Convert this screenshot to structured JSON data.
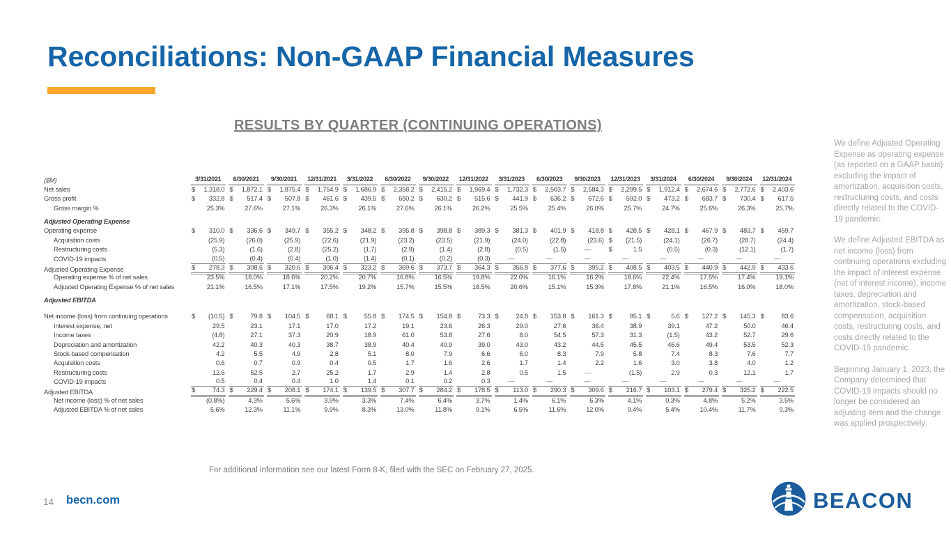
{
  "title": "Reconciliations: Non-GAAP Financial Measures",
  "table_heading": "RESULTS BY QUARTER (CONTINUING OPERATIONS)",
  "footnote": "For additional information see our latest Form 8-K, filed with the SEC on February 27, 2025.",
  "footer": {
    "page_number": "14",
    "site": "becn.com",
    "logo_text": "BEACON"
  },
  "colors": {
    "brand_blue": "#1565a8",
    "logo_blue": "#1b5c9c",
    "accent_orange": "#f9a72b",
    "heading_gray": "#7d7d7d",
    "table_text": "#404040",
    "sidebar_gray": "#a6a6a6"
  },
  "sidebar": {
    "paragraphs": [
      "We define Adjusted Operating Expense as operating expense (as reported on a GAAP basis) excluding the impact of amortization, acquisition costs, restructuring costs, and costs directly related to the COVID-19 pandemic.",
      "We define Adjusted EBITDA as net income (loss) from continuing operations excluding the impact of interest expense (net of interest income), income taxes, depreciation and amortization, stock-based compensation, acquisition costs, restructuring costs, and costs directly related to the COVID-19 pandemic.",
      "Beginning January 1, 2023, the Company determined that COVID-19 impacts should no longer be considered an adjusting item and the change was applied prospectively."
    ]
  },
  "table": {
    "units_label": "($M)",
    "columns": [
      "3/31/2021",
      "6/30/2021",
      "9/30/2021",
      "12/31/2021",
      "3/31/2022",
      "6/30/2022",
      "9/30/2022",
      "12/31/2022",
      "3/31/2023",
      "6/30/2023",
      "9/30/2023",
      "12/31/2023",
      "3/31/2024",
      "6/30/2024",
      "9/30/2024",
      "12/31/2024"
    ],
    "rows": [
      {
        "label": "Net sales",
        "values": [
          "$ 1,318.0",
          "$ 1,872.1",
          "$ 1,875.4",
          "$ 1,754.9",
          "$ 1,686.9",
          "$ 2,358.2",
          "$ 2,415.2",
          "$ 1,969.4",
          "$ 1,732.3",
          "$ 2,503.7",
          "$ 2,584.3",
          "$ 2,299.5",
          "$ 1,912.4",
          "$ 2,674.6",
          "$ 2,772.6",
          "$ 2,403.6"
        ]
      },
      {
        "label": "Gross profit",
        "values": [
          "$ 332.8",
          "$ 517.4",
          "$ 507.8",
          "$ 461.6",
          "$ 439.5",
          "$ 650.2",
          "$ 630.2",
          "$ 515.6",
          "$ 441.9",
          "$ 636.2",
          "$ 672.6",
          "$ 592.0",
          "$ 473.2",
          "$ 683.7",
          "$ 730.4",
          "$ 617.5"
        ]
      },
      {
        "label": "Gross margin %",
        "indent": 1,
        "values": [
          "25.3%",
          "27.6%",
          "27.1%",
          "26.3%",
          "26.1%",
          "27.6%",
          "26.1%",
          "26.2%",
          "25.5%",
          "25.4%",
          "26.0%",
          "25.7%",
          "24.7%",
          "25.6%",
          "26.3%",
          "25.7%"
        ]
      },
      {
        "label": "Adjusted Operating Expense",
        "section": true,
        "space_before": 6
      },
      {
        "label": "Operating expense",
        "values": [
          "$ 310.0",
          "$ 336.6",
          "$ 349.7",
          "$ 355.2",
          "$ 348.2",
          "$ 395.8",
          "$ 398.8",
          "$ 389.3",
          "$ 381.3",
          "$ 401.9",
          "$ 418.8",
          "$ 428.5",
          "$ 428.1",
          "$ 467.9",
          "$ 483.7",
          "$ 459.7"
        ]
      },
      {
        "label": "Acquisition costs",
        "indent": 1,
        "values": [
          "(25.9)",
          "(26.0)",
          "(25.9)",
          "(22.6)",
          "(21.9)",
          "(23.2)",
          "(23.5)",
          "(21.9)",
          "(24.0)",
          "(22.8)",
          "(23.6)",
          "$ (21.5)",
          "(24.1)",
          "(26.7)",
          "(28.7)",
          "(24.4)"
        ]
      },
      {
        "label": "Restructuring costs",
        "indent": 1,
        "values": [
          "(5.3)",
          "(1.6)",
          "(2.8)",
          "(25.2)",
          "(1.7)",
          "(2.9)",
          "(1.4)",
          "(2.8)",
          "(0.5)",
          "(1.5)",
          "—",
          "$ 1.5",
          "(0.5)",
          "(0.3)",
          "(12.1)",
          "(1.7)"
        ]
      },
      {
        "label": "COVID-19 impacts",
        "indent": 1,
        "underline": "single",
        "values": [
          "(0.5)",
          "(0.4)",
          "(0.4)",
          "(1.0)",
          "(1.4)",
          "(0.1)",
          "(0.2)",
          "(0.3)",
          "—",
          "—",
          "—",
          "—",
          "—",
          "—",
          "—",
          "—"
        ]
      },
      {
        "label": "Adjusted Operating Expense",
        "underline": "double",
        "values": [
          "$ 278.3",
          "$ 308.6",
          "$ 320.6",
          "$ 306.4",
          "$ 323.2",
          "$ 369.6",
          "$ 373.7",
          "$ 364.3",
          "$ 356.8",
          "$ 377.6",
          "$ 395.2",
          "$ 408.5",
          "$ 403.5",
          "$ 440.9",
          "$ 442.9",
          "$ 433.6"
        ]
      },
      {
        "label": "Operating expense % of net sales",
        "indent": 1,
        "values": [
          "23.5%",
          "18.0%",
          "18.6%",
          "20.2%",
          "20.7%",
          "16.8%",
          "16.5%",
          "19.8%",
          "22.0%",
          "16.1%",
          "16.2%",
          "18.6%",
          "22.4%",
          "17.5%",
          "17.4%",
          "19.1%"
        ]
      },
      {
        "label": "Adjusted Operating Expense % of net sales",
        "indent": 1,
        "values": [
          "21.1%",
          "16.5%",
          "17.1%",
          "17.5%",
          "19.2%",
          "15.7%",
          "15.5%",
          "18.5%",
          "20.6%",
          "15.1%",
          "15.3%",
          "17.8%",
          "21.1%",
          "16.5%",
          "16.0%",
          "18.0%"
        ]
      },
      {
        "label": "Adjusted EBITDA",
        "section": true,
        "space_before": 6
      },
      {
        "label": "Net income (loss) from continuing operations",
        "space_before": 10,
        "values": [
          "$ (10.5)",
          "$ 79.8",
          "$ 104.5",
          "$ 68.1",
          "$ 55.8",
          "$ 174.5",
          "$ 154.8",
          "$ 73.3",
          "$ 24.8",
          "$ 153.8",
          "$ 161.3",
          "$ 95.1",
          "$ 5.6",
          "$ 127.2",
          "$ 145.3",
          "$ 83.6"
        ]
      },
      {
        "label": "Interest expense, net",
        "indent": 1,
        "values": [
          "29.5",
          "23.1",
          "17.1",
          "17.0",
          "17.2",
          "19.1",
          "23.6",
          "26.3",
          "29.0",
          "27.6",
          "36.4",
          "38.9",
          "39.1",
          "47.2",
          "50.0",
          "46.4"
        ]
      },
      {
        "label": "Income taxes",
        "indent": 1,
        "values": [
          "(4.8)",
          "27.1",
          "37.3",
          "20.9",
          "18.9",
          "61.0",
          "53.8",
          "27.6",
          "8.0",
          "54.5",
          "57.3",
          "31.3",
          "(1.5)",
          "43.2",
          "52.7",
          "29.6"
        ]
      },
      {
        "label": "Depreciation and amortization",
        "indent": 1,
        "values": [
          "42.2",
          "40.3",
          "40.3",
          "38.7",
          "38.9",
          "40.4",
          "40.9",
          "39.0",
          "43.0",
          "43.2",
          "44.5",
          "45.5",
          "46.6",
          "49.4",
          "53.5",
          "52.3"
        ]
      },
      {
        "label": "Stock-based compensation",
        "indent": 1,
        "values": [
          "4.2",
          "5.5",
          "4.9",
          "2.8",
          "5.1",
          "8.0",
          "7.9",
          "6.6",
          "6.0",
          "8.3",
          "7.9",
          "5.8",
          "7.4",
          "8.3",
          "7.6",
          "7.7"
        ]
      },
      {
        "label": "Acquisition costs",
        "indent": 1,
        "values": [
          "0.6",
          "0.7",
          "0.9",
          "0.4",
          "0.5",
          "1.7",
          "1.6",
          "2.6",
          "1.7",
          "1.4",
          "2.2",
          "1.6",
          "3.0",
          "3.8",
          "4.0",
          "1.2"
        ]
      },
      {
        "label": "Restructuring costs",
        "indent": 1,
        "values": [
          "12.6",
          "52.5",
          "2.7",
          "25.2",
          "1.7",
          "2.9",
          "1.4",
          "2.8",
          "0.5",
          "1.5",
          "—",
          "(1.5)",
          "2.9",
          "0.3",
          "12.1",
          "1.7"
        ]
      },
      {
        "label": "COVID-19 impacts",
        "indent": 1,
        "underline": "single",
        "values": [
          "0.5",
          "0.4",
          "0.4",
          "1.0",
          "1.4",
          "0.1",
          "0.2",
          "0.3",
          "—",
          "—",
          "—",
          "—",
          "—",
          "—",
          "—",
          "—"
        ]
      },
      {
        "label": "Adjusted EBITDA",
        "underline": "double",
        "values": [
          "$ 74.3",
          "$ 229.4",
          "$ 208.1",
          "$ 174.1",
          "$ 139.5",
          "$ 307.7",
          "$ 284.2",
          "$ 178.5",
          "$ 113.0",
          "$ 290.3",
          "$ 309.6",
          "$ 216.7",
          "$ 103.1",
          "$ 279.4",
          "$ 325.2",
          "$ 222.5"
        ]
      },
      {
        "label": "Net income (loss) % of net sales",
        "indent": 1,
        "values": [
          "(0.8%)",
          "4.3%",
          "5.6%",
          "3.9%",
          "3.3%",
          "7.4%",
          "6.4%",
          "3.7%",
          "1.4%",
          "6.1%",
          "6.3%",
          "4.1%",
          "0.3%",
          "4.8%",
          "5.2%",
          "3.5%"
        ]
      },
      {
        "label": "Adjusted EBITDA % of net sales",
        "indent": 1,
        "values": [
          "5.6%",
          "12.3%",
          "11.1%",
          "9.9%",
          "8.3%",
          "13.0%",
          "11.8%",
          "9.1%",
          "6.5%",
          "11.6%",
          "12.0%",
          "9.4%",
          "5.4%",
          "10.4%",
          "11.7%",
          "9.3%"
        ]
      }
    ]
  }
}
